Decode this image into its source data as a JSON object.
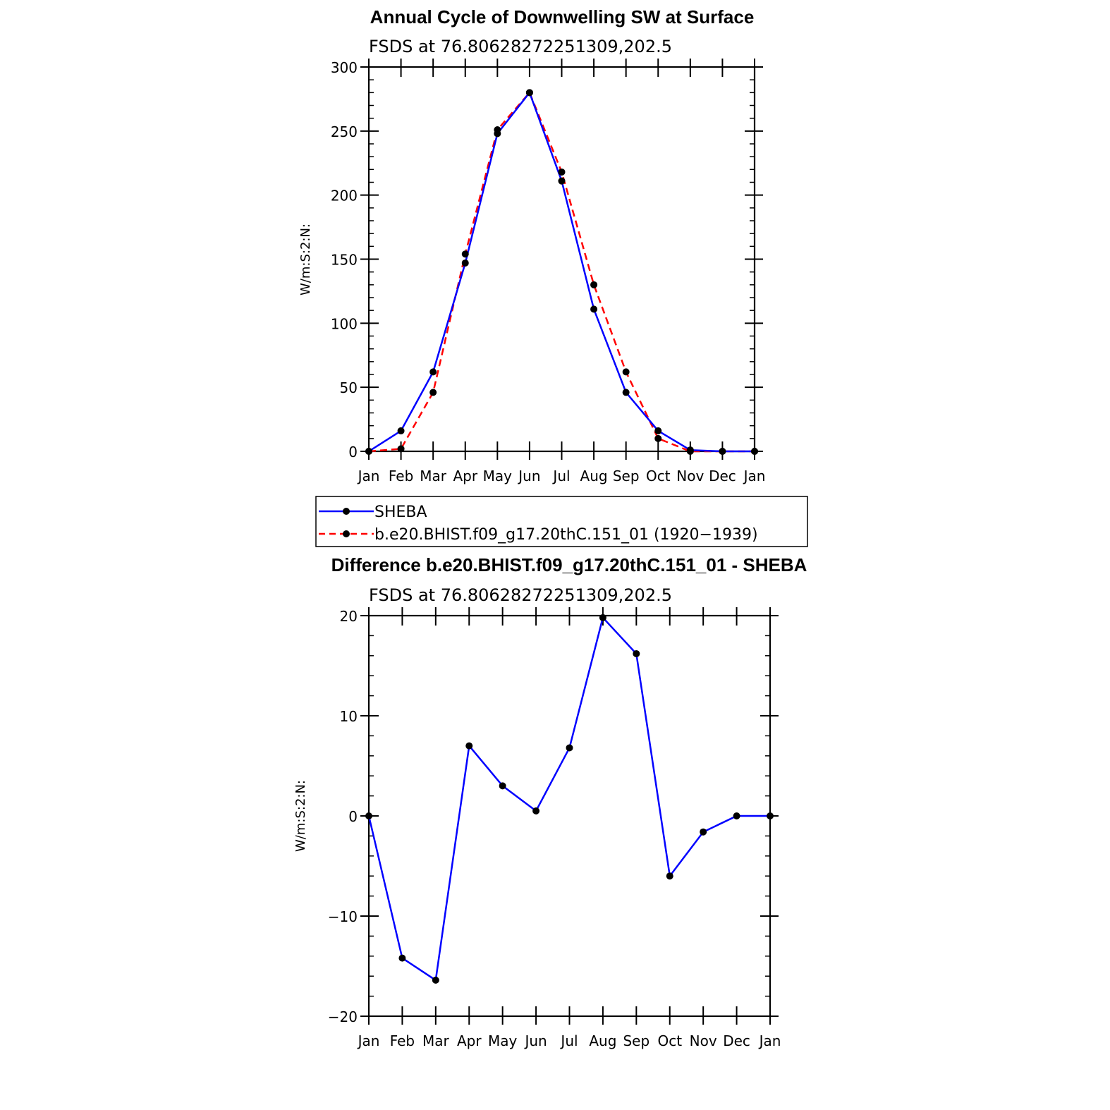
{
  "chart_data": [
    {
      "type": "line",
      "title": "Annual Cycle of Downwelling SW at Surface",
      "subtitle": "FSDS at 76.80628272251309,202.5",
      "ylabel": "W/m:S:2:N:",
      "xlabel": "",
      "categories": [
        "Jan",
        "Feb",
        "Mar",
        "Apr",
        "May",
        "Jun",
        "Jul",
        "Aug",
        "Sep",
        "Oct",
        "Nov",
        "Dec",
        "Jan"
      ],
      "ylim": [
        0,
        300
      ],
      "yticks": [
        0,
        50,
        100,
        150,
        200,
        250,
        300
      ],
      "ytick_labels": [
        "0",
        "50",
        "100",
        "150",
        "200",
        "250",
        "300"
      ],
      "series": [
        {
          "name": "SHEBA",
          "color": "#0000ff",
          "dash": "solid",
          "values": [
            0,
            16,
            62,
            147,
            248,
            280,
            211,
            111,
            46,
            16,
            1,
            0,
            0
          ]
        },
        {
          "name": "b.e20.BHIST.f09_g17.20thC.151_01 (1920−1939)",
          "color": "#ff0000",
          "dash": "dashed",
          "values": [
            0,
            2,
            46,
            154,
            251,
            280,
            218,
            130,
            62,
            10,
            0,
            0,
            0
          ]
        }
      ],
      "legend": "bottom"
    },
    {
      "type": "line",
      "title": "Difference b.e20.BHIST.f09_g17.20thC.151_01 - SHEBA",
      "subtitle": "FSDS at 76.80628272251309,202.5",
      "ylabel": "W/m:S:2:N:",
      "xlabel": "",
      "categories": [
        "Jan",
        "Feb",
        "Mar",
        "Apr",
        "May",
        "Jun",
        "Jul",
        "Aug",
        "Sep",
        "Oct",
        "Nov",
        "Dec",
        "Jan"
      ],
      "ylim": [
        -20,
        20
      ],
      "yticks": [
        -20,
        -10,
        0,
        10,
        20
      ],
      "ytick_labels": [
        "−20",
        "−10",
        "0",
        "10",
        "20"
      ],
      "series": [
        {
          "color": "#0000ff",
          "dash": "solid",
          "values": [
            0,
            -14.2,
            -16.4,
            7.0,
            3.0,
            0.5,
            6.8,
            19.8,
            16.2,
            -6.0,
            -1.6,
            0,
            0
          ]
        }
      ]
    }
  ]
}
